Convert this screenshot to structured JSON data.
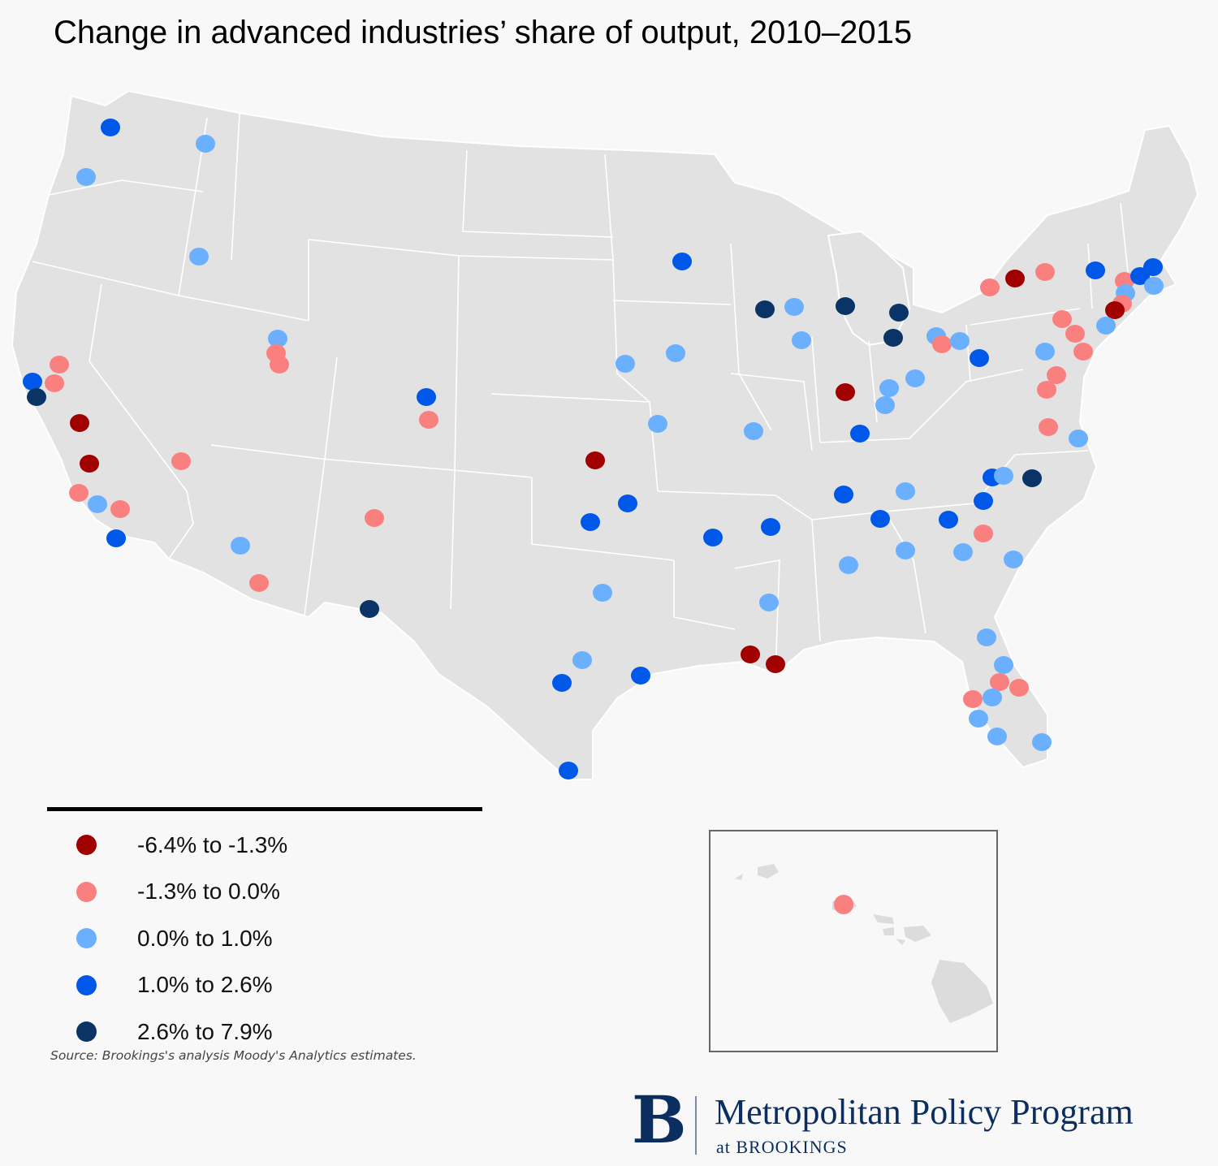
{
  "title": "Change in advanced industries’ share of output, 2010–2015",
  "legend": [
    {
      "label": "-6.4% to -1.3%",
      "color": "#a00000"
    },
    {
      "label": "-1.3% to 0.0%",
      "color": "#fa8080"
    },
    {
      "label": "0.0% to 1.0%",
      "color": "#6ab0ff"
    },
    {
      "label": "1.0% to 2.6%",
      "color": "#0058e8"
    },
    {
      "label": "2.6% to 7.9%",
      "color": "#0a3366"
    }
  ],
  "source": "Source: Brookings's analysis Moody's Analytics estimates.",
  "branding": {
    "logo_letter": "B",
    "program": "Metropolitan Policy Program",
    "sub": "at BROOKINGS"
  }
}
